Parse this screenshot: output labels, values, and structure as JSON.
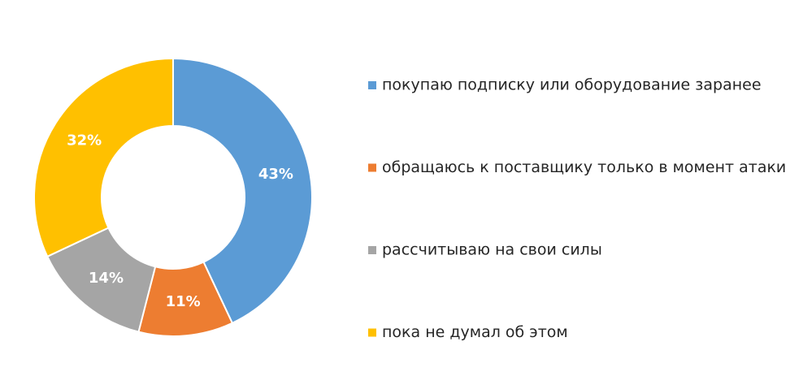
{
  "chart_data": {
    "type": "donut",
    "categories": [
      "покупаю подписку или оборудование заранее",
      "обращаюсь к поставщику только в момент атаки",
      "рассчитываю на свои силы",
      "пока не думал об этом"
    ],
    "values": [
      43,
      11,
      14,
      32
    ],
    "value_labels": [
      "43%",
      "11%",
      "14%",
      "32%"
    ],
    "colors": [
      "#5b9bd5",
      "#ed7d31",
      "#a5a5a5",
      "#ffc000"
    ],
    "legend": "right"
  }
}
